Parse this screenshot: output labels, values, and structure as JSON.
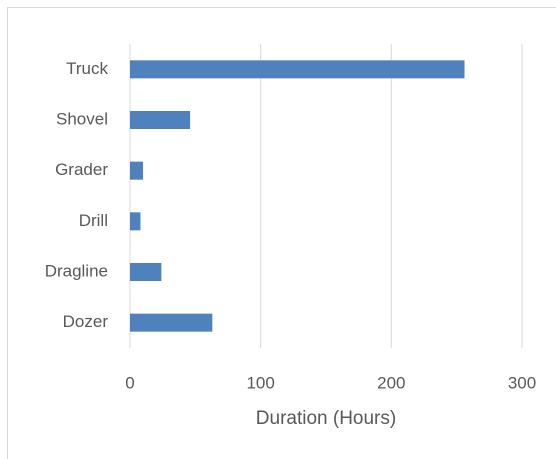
{
  "chart_data": {
    "type": "hbar",
    "x_label": "Duration (Hours)",
    "categories": [
      "Truck",
      "Shovel",
      "Grader",
      "Drill",
      "Dragline",
      "Dozer"
    ],
    "values": [
      256,
      46,
      10,
      8,
      24,
      63
    ],
    "color": "#4f81bd",
    "xlim": [
      0,
      300
    ],
    "xticks": [
      0,
      100,
      200,
      300
    ],
    "grid": true
  }
}
